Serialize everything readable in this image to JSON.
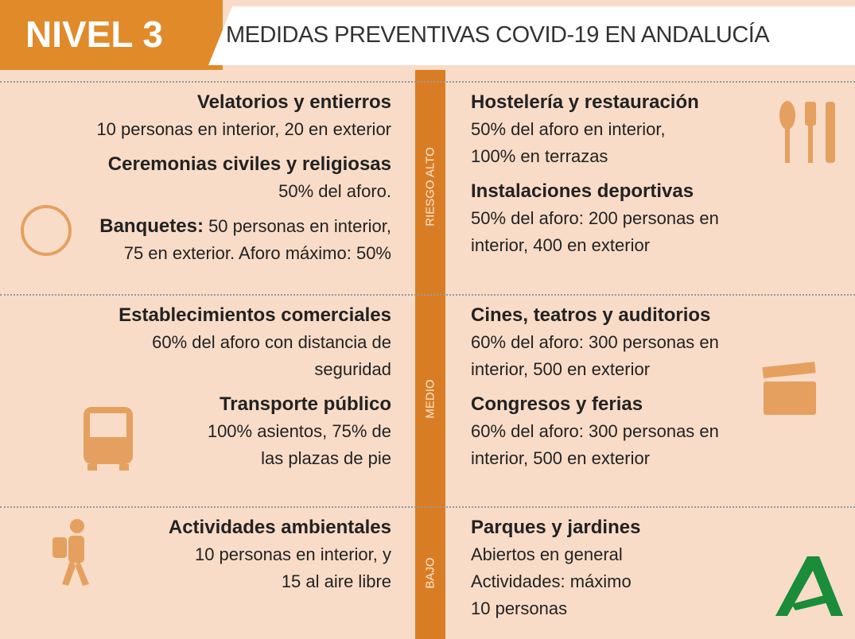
{
  "header": {
    "level": "NIVEL 3",
    "title": "MEDIDAS PREVENTIVAS COVID-19 EN ANDALUCÍA"
  },
  "sections": [
    {
      "risk": "RIESGO ALTO",
      "left": [
        {
          "heading": "Velatorios y entierros",
          "lines": [
            "10 personas en interior, 20 en exterior"
          ]
        },
        {
          "heading": "Ceremonias civiles y religiosas",
          "lines": [
            "50% del aforo."
          ]
        },
        {
          "lead": "Banquetes:",
          "lines": [
            "50 personas en interior,",
            "75 en exterior. Aforo máximo: 50%"
          ]
        }
      ],
      "right": [
        {
          "heading": "Hostelería y restauración",
          "lines": [
            "50% del aforo en interior,",
            "100% en terrazas"
          ]
        },
        {
          "heading": "Instalaciones deportivas",
          "lines": [
            "50% del aforo: 200 personas en",
            "interior, 400 en exterior"
          ]
        }
      ]
    },
    {
      "risk": "MEDIO",
      "left": [
        {
          "heading": "Establecimientos comerciales",
          "lines": [
            "60% del aforo con distancia de",
            "seguridad"
          ]
        },
        {
          "heading": "Transporte público",
          "lines": [
            "100% asientos, 75% de",
            "las plazas de pie"
          ]
        }
      ],
      "right": [
        {
          "heading": "Cines, teatros y auditorios",
          "lines": [
            "60% del aforo: 300 personas en",
            "interior, 500 en exterior"
          ]
        },
        {
          "heading": "Congresos y ferias",
          "lines": [
            "60% del aforo: 300 personas en",
            "interior, 500 en exterior"
          ]
        }
      ]
    },
    {
      "risk": "BAJO",
      "left": [
        {
          "heading": "Actividades ambientales",
          "lines": [
            "10 personas en interior, y",
            "15 al aire libre"
          ]
        }
      ],
      "right": [
        {
          "heading": "Parques y jardines",
          "lines": [
            "Abiertos en general",
            "Actividades: máximo",
            "10 personas"
          ]
        }
      ]
    }
  ]
}
